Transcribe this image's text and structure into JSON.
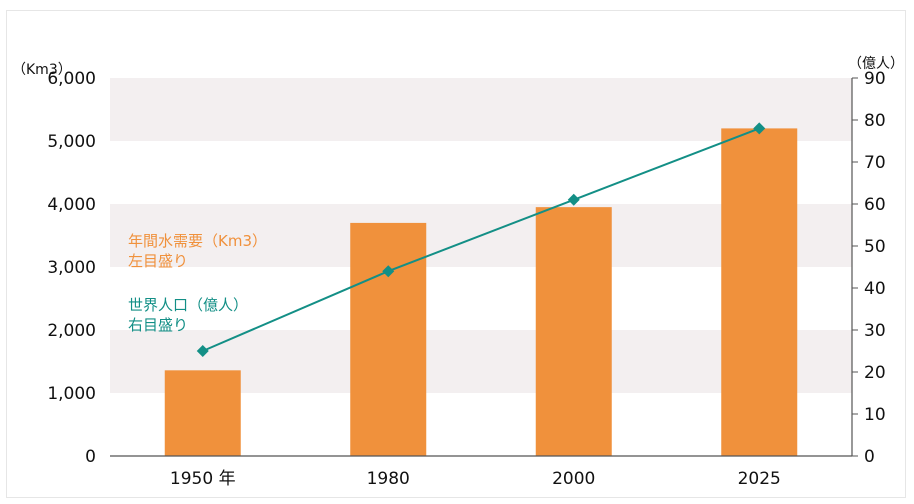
{
  "chart_data": {
    "type": "bar",
    "categories": [
      "1950 年",
      "1980",
      "2000",
      "2025"
    ],
    "series": [
      {
        "name": "年間水需要（Km3）左目盛り",
        "kind": "bar",
        "axis": "left",
        "values": [
          1360,
          3700,
          3950,
          5200
        ]
      },
      {
        "name": "世界人口（億人）右目盛り",
        "kind": "line",
        "axis": "right",
        "values": [
          25,
          44,
          61,
          78
        ]
      }
    ],
    "left_axis": {
      "unit": "（Km3）",
      "ticks": [
        "0",
        "1,000",
        "2,000",
        "3,000",
        "4,000",
        "5,000",
        "6,000"
      ],
      "ylim": [
        0,
        6000
      ]
    },
    "right_axis": {
      "unit": "（億人）",
      "ticks": [
        "0",
        "10",
        "20",
        "30",
        "40",
        "50",
        "60",
        "70",
        "80",
        "90"
      ],
      "ylim": [
        0,
        90
      ]
    },
    "legend_orange": [
      "年間水需要（Km3）",
      "左目盛り"
    ],
    "legend_teal": [
      "世界人口（億人）",
      "右目盛り"
    ],
    "grid": "alternating bands",
    "colors": {
      "bar": "#f0913c",
      "line": "#138f86",
      "band": "#f3eff0"
    }
  }
}
